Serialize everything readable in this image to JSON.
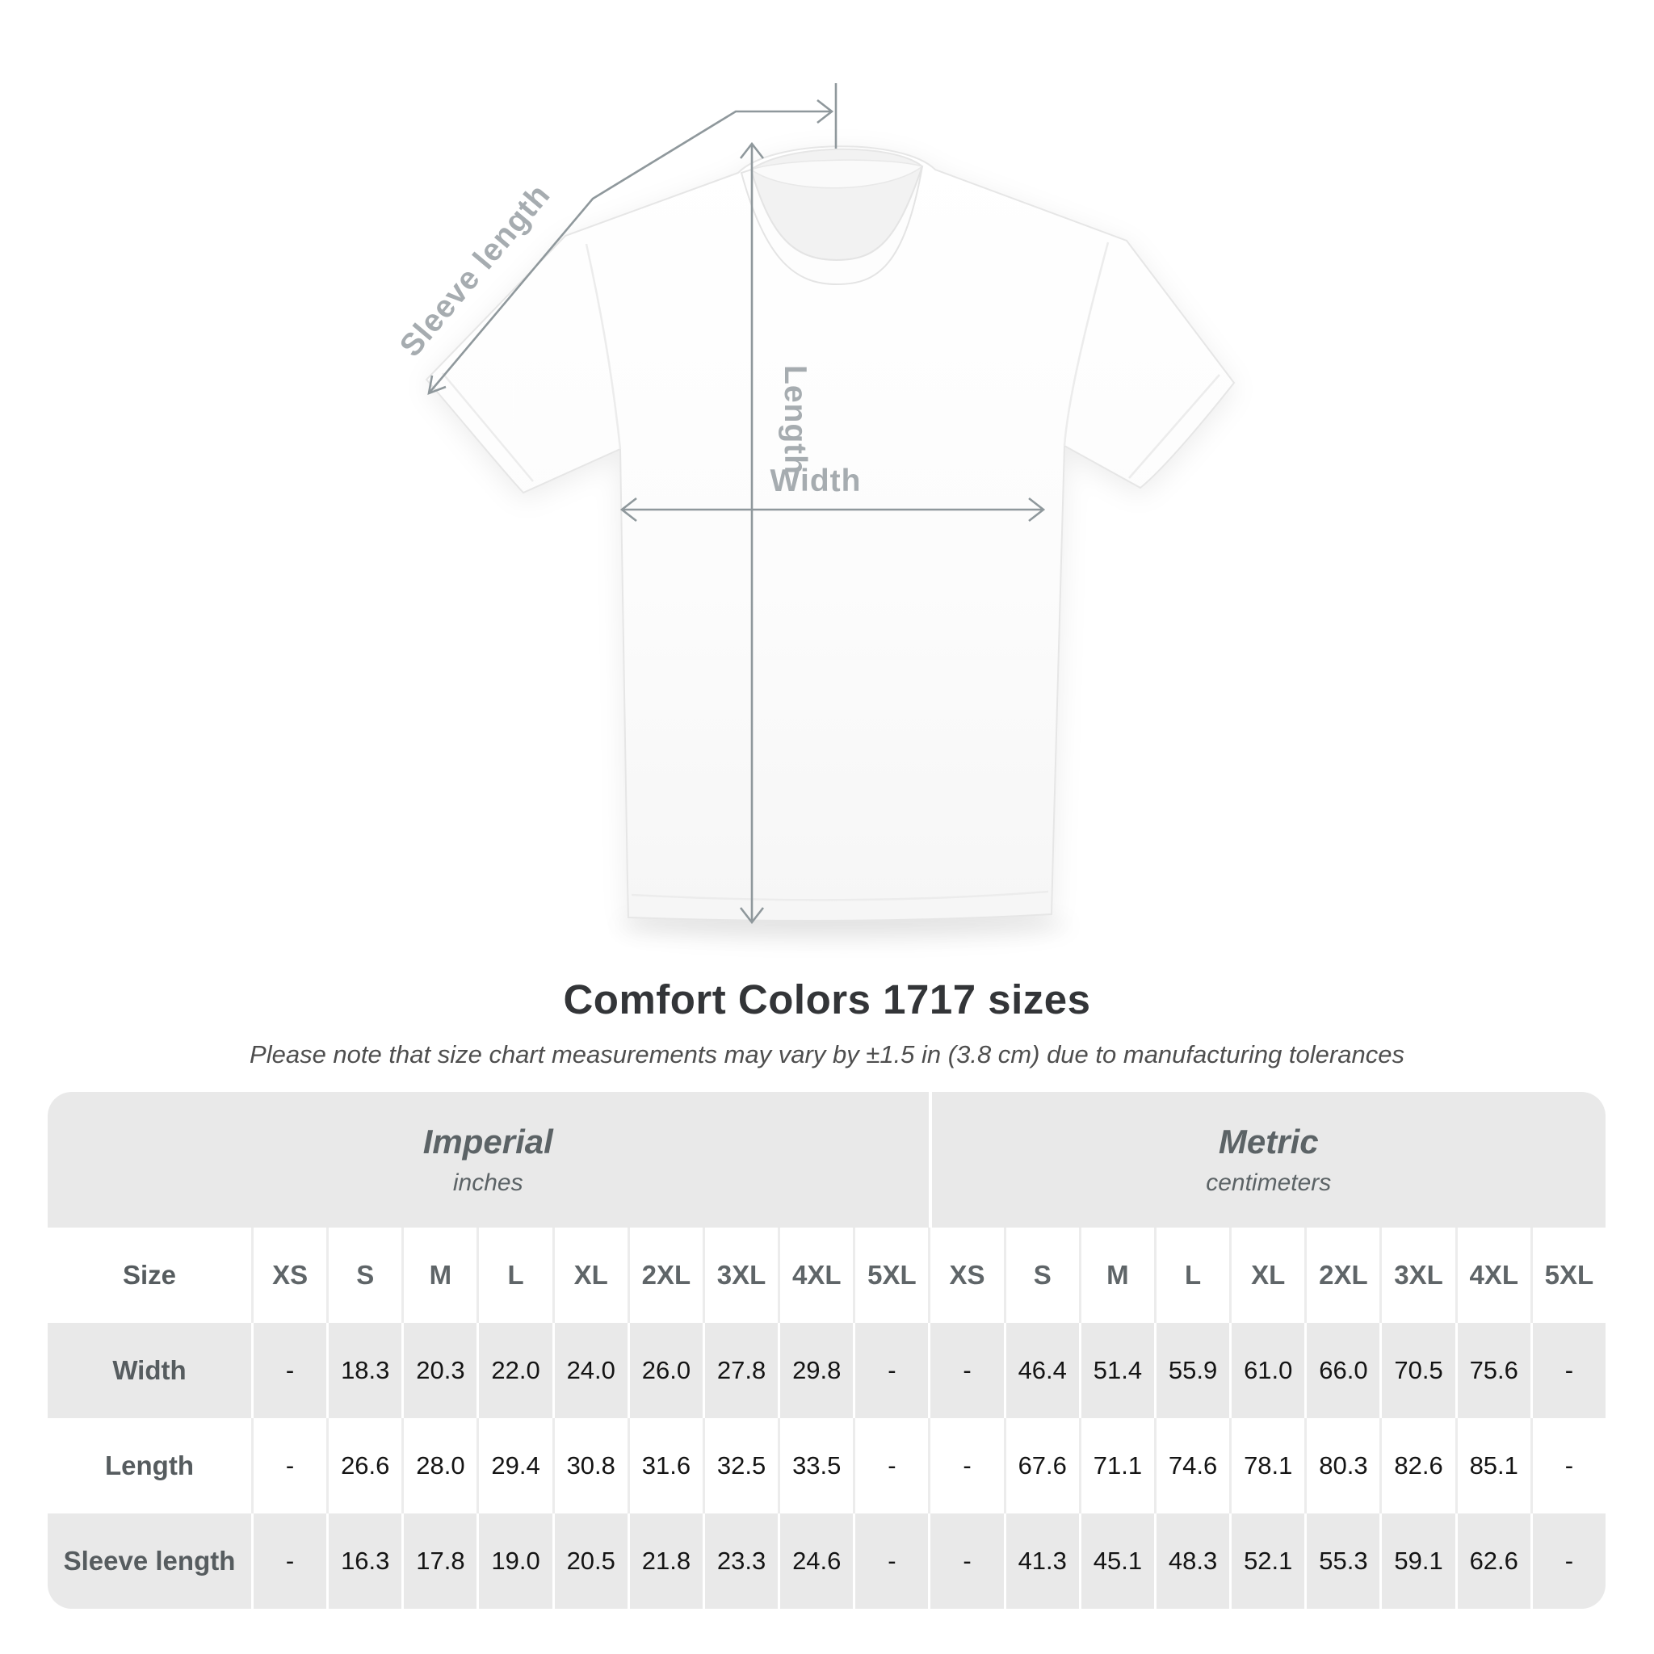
{
  "diagram": {
    "sleeve_length_label": "Sleeve length",
    "length_label": "Length",
    "width_label": "Width"
  },
  "title": "Comfort Colors 1717 sizes",
  "subtitle": "Please note that size chart measurements may vary by ±1.5 in (3.8 cm) due to manufacturing tolerances",
  "table": {
    "groups": [
      {
        "label": "Imperial",
        "sublabel": "inches"
      },
      {
        "label": "Metric",
        "sublabel": "centimeters"
      }
    ],
    "size_header": "Size",
    "sizes": [
      "XS",
      "S",
      "M",
      "L",
      "XL",
      "2XL",
      "3XL",
      "4XL",
      "5XL"
    ],
    "rows": [
      {
        "label": "Width",
        "imperial": [
          "-",
          "18.3",
          "20.3",
          "22.0",
          "24.0",
          "26.0",
          "27.8",
          "29.8",
          "-"
        ],
        "metric": [
          "-",
          "46.4",
          "51.4",
          "55.9",
          "61.0",
          "66.0",
          "70.5",
          "75.6",
          "-"
        ]
      },
      {
        "label": "Length",
        "imperial": [
          "-",
          "26.6",
          "28.0",
          "29.4",
          "30.8",
          "31.6",
          "32.5",
          "33.5",
          "-"
        ],
        "metric": [
          "-",
          "67.6",
          "71.1",
          "74.6",
          "78.1",
          "80.3",
          "82.6",
          "85.1",
          "-"
        ]
      },
      {
        "label": "Sleeve length",
        "imperial": [
          "-",
          "16.3",
          "17.8",
          "19.0",
          "20.5",
          "21.8",
          "23.3",
          "24.6",
          "-"
        ],
        "metric": [
          "-",
          "41.3",
          "45.1",
          "48.3",
          "52.1",
          "55.3",
          "59.1",
          "62.6",
          "-"
        ]
      }
    ]
  }
}
